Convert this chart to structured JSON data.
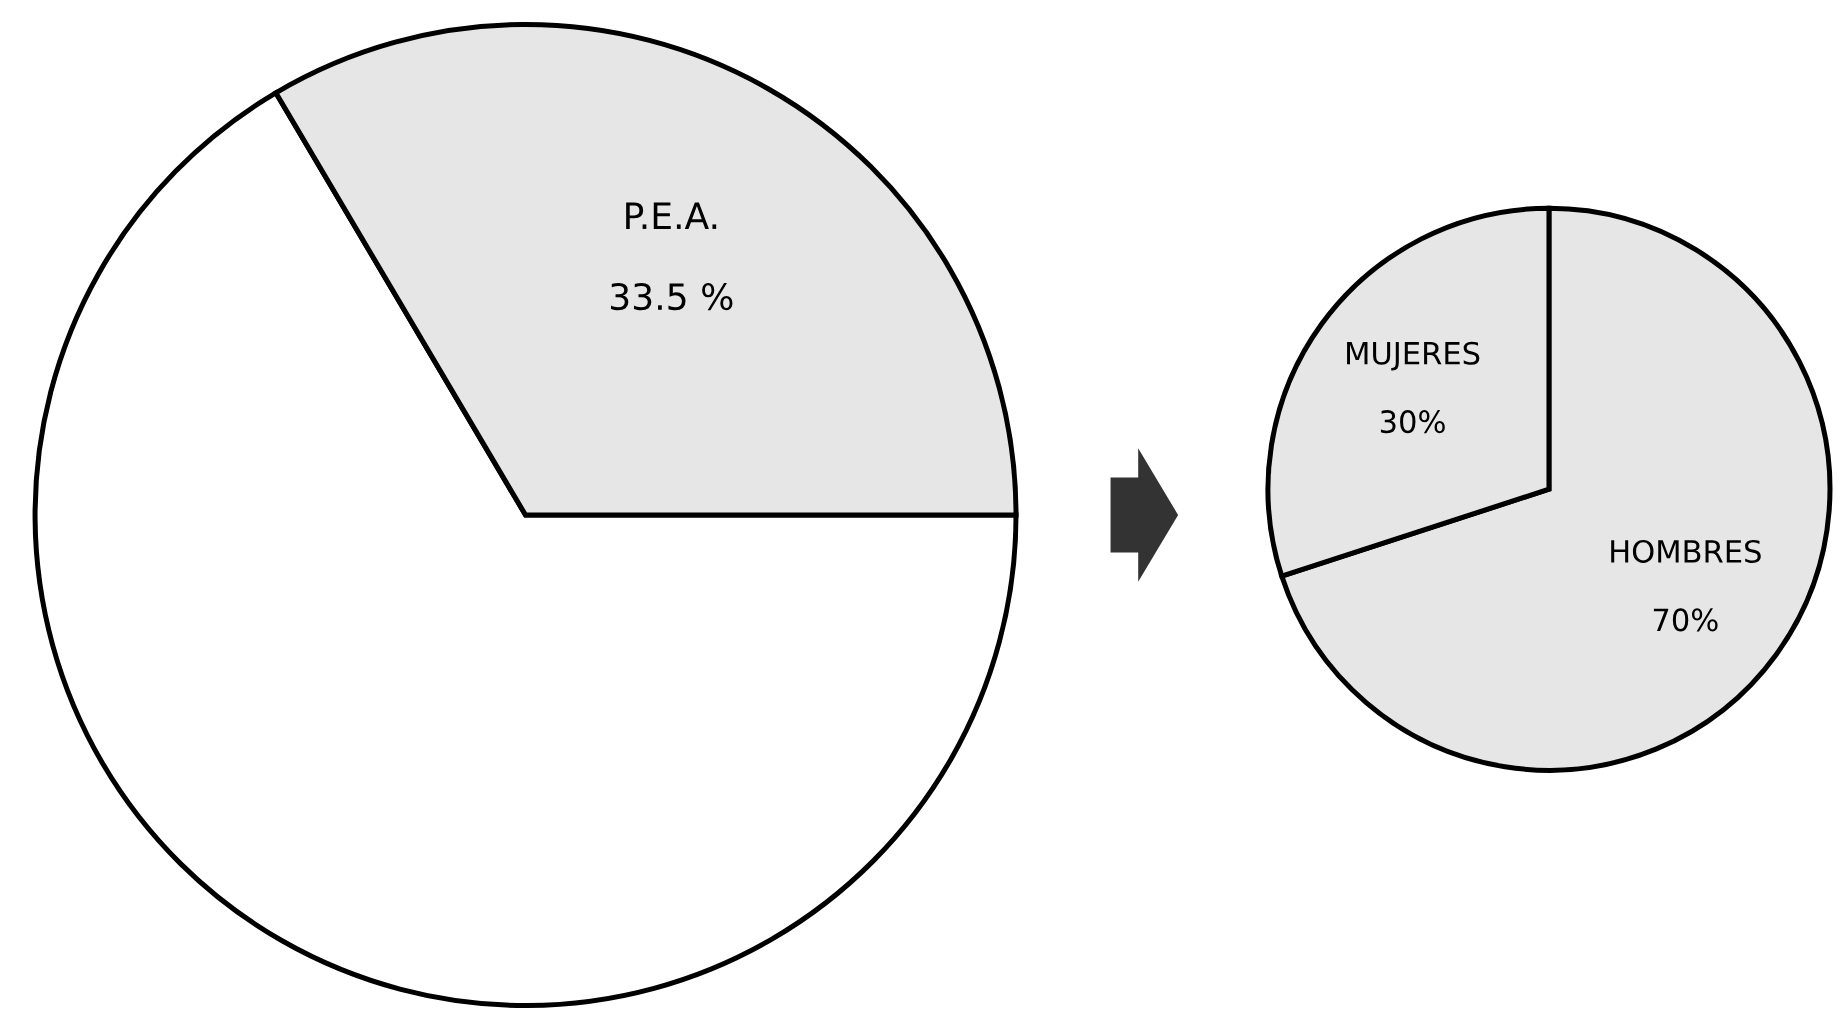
{
  "chart_data": [
    {
      "type": "pie",
      "categories": [
        null,
        "P.E.A."
      ],
      "values": [
        66.5,
        33.5
      ],
      "value_labels": [
        null,
        "33.5 %"
      ],
      "colors": [
        "#ffffff",
        "#e6e6e6"
      ]
    },
    {
      "type": "pie",
      "categories": [
        "HOMBRES",
        "MUJERES"
      ],
      "values": [
        70,
        30
      ],
      "value_labels": [
        "70%",
        "30%"
      ],
      "colors": [
        "#e6e6e6",
        "#e6e6e6"
      ]
    }
  ]
}
